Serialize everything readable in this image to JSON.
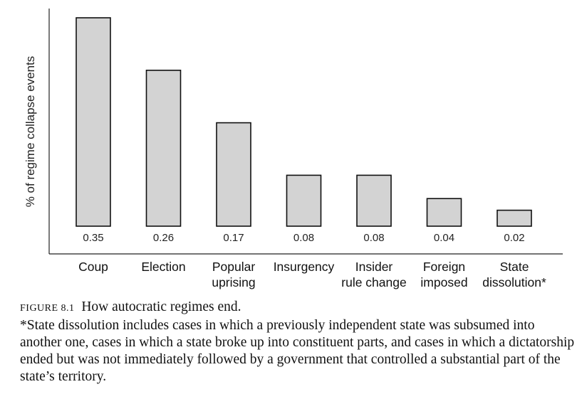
{
  "chart_data": {
    "type": "bar",
    "title": "",
    "xlabel": "",
    "ylabel": "% of regime collapse events",
    "categories": [
      [
        "Coup"
      ],
      [
        "Election"
      ],
      [
        "Popular",
        "uprising"
      ],
      [
        "Insurgency"
      ],
      [
        "Insider",
        "rule change"
      ],
      [
        "Foreign",
        "imposed"
      ],
      [
        "State",
        "dissolution*"
      ]
    ],
    "values": [
      0.35,
      0.26,
      0.17,
      0.08,
      0.08,
      0.04,
      0.02
    ],
    "value_labels": [
      "0.35",
      "0.26",
      "0.17",
      "0.08",
      "0.08",
      "0.04",
      "0.02"
    ],
    "ylim": [
      0,
      0.36
    ],
    "grid": false,
    "bar_color": "#d3d3d3"
  },
  "caption": {
    "figure_label": "FIGURE 8.1",
    "title": "How autocratic regimes end.",
    "note": "*State dissolution includes cases in which a previously independent state was subsumed into another one, cases in which a state broke up into constituent parts, and cases in which a dictatorship ended but was not immediately followed by a government that controlled a substantial part of the state’s territory."
  }
}
